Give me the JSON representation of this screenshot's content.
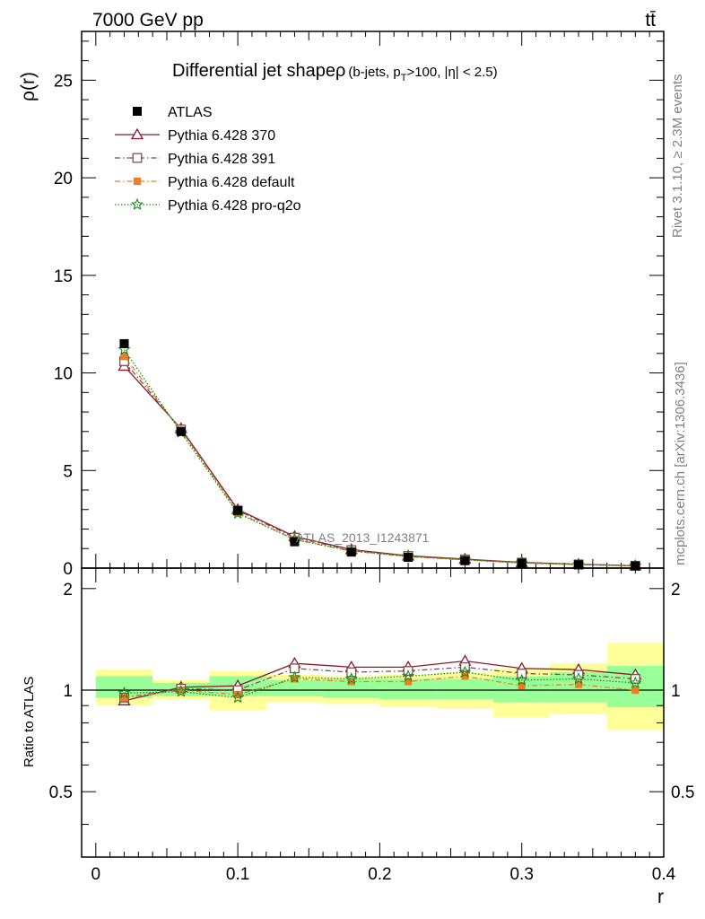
{
  "header": {
    "energy_label": "7000 GeV pp",
    "process_label": "tt̄",
    "analysis_id": "ATLAS_2013_I1243871",
    "side_rivet": "Rivet 3.1.10, ≥ 2.3M events",
    "side_mcplots": "mcplots.cern.ch [arXiv:1306.3436]"
  },
  "chart_data": [
    {
      "type": "line",
      "title_main": "Differential jet shapeρ",
      "title_sub_1": "(b-jets, p",
      "title_sub_2": "T",
      "title_sub_3": ">100, |η| < 2.5)",
      "ylabel": "ρ(r)",
      "xlim": [
        -0.01,
        0.4
      ],
      "ylim": [
        0,
        27.5
      ],
      "yticks_labeled": [
        "0",
        "5",
        "10",
        "15",
        "20",
        "25"
      ],
      "legend_position": "top-left",
      "x": [
        0.02,
        0.06,
        0.1,
        0.14,
        0.18,
        0.22,
        0.26,
        0.3,
        0.34,
        0.38
      ],
      "data": {
        "name": "ATLAS",
        "values": [
          11.5,
          7.0,
          2.95,
          1.35,
          0.82,
          0.55,
          0.38,
          0.25,
          0.17,
          0.11
        ],
        "color": "#000000"
      },
      "series": [
        {
          "name": "Pythia 6.428 370",
          "values": [
            10.35,
            7.15,
            3.0,
            1.62,
            0.95,
            0.63,
            0.46,
            0.29,
            0.2,
            0.12
          ],
          "color": "#8b1a2e",
          "dash": "",
          "marker": "triangle-open"
        },
        {
          "name": "Pythia 6.428 391",
          "values": [
            10.6,
            7.1,
            2.95,
            1.56,
            0.92,
            0.62,
            0.44,
            0.28,
            0.19,
            0.12
          ],
          "color": "#7a5050",
          "dash": "6,3,1.5,3",
          "marker": "square-open"
        },
        {
          "name": "Pythia 6.428 default",
          "values": [
            10.85,
            7.05,
            2.85,
            1.46,
            0.87,
            0.58,
            0.42,
            0.26,
            0.18,
            0.11
          ],
          "color": "#f07c28",
          "dash": "6,3,1.5,3",
          "marker": "square-filled"
        },
        {
          "name": "Pythia 6.428 pro-q2o",
          "values": [
            11.2,
            6.95,
            2.8,
            1.47,
            0.88,
            0.6,
            0.43,
            0.27,
            0.18,
            0.115
          ],
          "color": "#1a8c1a",
          "dash": "1.5,2",
          "marker": "star-open"
        }
      ]
    },
    {
      "type": "line",
      "ylabel": "Ratio to ATLAS",
      "xlabel": "r",
      "xlim": [
        -0.01,
        0.4
      ],
      "ylim": [
        0.32,
        2.3
      ],
      "yticks_labeled": [
        "0.5",
        "1",
        "2"
      ],
      "xticks_labeled": [
        "0",
        "0.1",
        "0.2",
        "0.3",
        "0.4"
      ],
      "x": [
        0.02,
        0.06,
        0.1,
        0.14,
        0.18,
        0.22,
        0.26,
        0.3,
        0.34,
        0.38
      ],
      "bins": [
        [
          0.0,
          0.04
        ],
        [
          0.04,
          0.08
        ],
        [
          0.08,
          0.12
        ],
        [
          0.12,
          0.16
        ],
        [
          0.16,
          0.2
        ],
        [
          0.2,
          0.24
        ],
        [
          0.24,
          0.28
        ],
        [
          0.28,
          0.32
        ],
        [
          0.32,
          0.36
        ],
        [
          0.36,
          0.4
        ]
      ],
      "band_outer": [
        [
          0.9,
          1.15
        ],
        [
          0.94,
          1.07
        ],
        [
          0.87,
          1.14
        ],
        [
          0.92,
          1.11
        ],
        [
          0.91,
          1.1
        ],
        [
          0.89,
          1.11
        ],
        [
          0.88,
          1.13
        ],
        [
          0.83,
          1.16
        ],
        [
          0.85,
          1.2
        ],
        [
          0.76,
          1.38
        ]
      ],
      "band_inner": [
        [
          0.95,
          1.1
        ],
        [
          0.96,
          1.05
        ],
        [
          0.96,
          1.1
        ],
        [
          0.96,
          1.07
        ],
        [
          0.95,
          1.08
        ],
        [
          0.94,
          1.08
        ],
        [
          0.94,
          1.08
        ],
        [
          0.92,
          1.1
        ],
        [
          0.92,
          1.13
        ],
        [
          0.89,
          1.18
        ]
      ],
      "series": [
        {
          "name": "Pythia 6.428 370",
          "values": [
            0.93,
            1.02,
            1.03,
            1.2,
            1.17,
            1.17,
            1.22,
            1.16,
            1.15,
            1.11
          ],
          "color": "#8b1a2e",
          "dash": "",
          "marker": "triangle-open"
        },
        {
          "name": "Pythia 6.428 391",
          "values": [
            0.95,
            1.01,
            1.0,
            1.16,
            1.13,
            1.14,
            1.17,
            1.12,
            1.11,
            1.08
          ],
          "color": "#7a5050",
          "dash": "6,3,1.5,3",
          "marker": "square-open"
        },
        {
          "name": "Pythia 6.428 default",
          "values": [
            0.95,
            1.0,
            0.97,
            1.08,
            1.06,
            1.06,
            1.1,
            1.03,
            1.04,
            1.0
          ],
          "color": "#f07c28",
          "dash": "6,3,1.5,3",
          "marker": "square-filled"
        },
        {
          "name": "Pythia 6.428 pro-q2o",
          "values": [
            0.98,
            0.99,
            0.95,
            1.09,
            1.08,
            1.1,
            1.13,
            1.07,
            1.08,
            1.05
          ],
          "color": "#1a8c1a",
          "dash": "1.5,2",
          "marker": "star-open"
        }
      ],
      "colors": {
        "band_outer": "#ffff99",
        "band_inner": "#99ff99"
      }
    }
  ]
}
